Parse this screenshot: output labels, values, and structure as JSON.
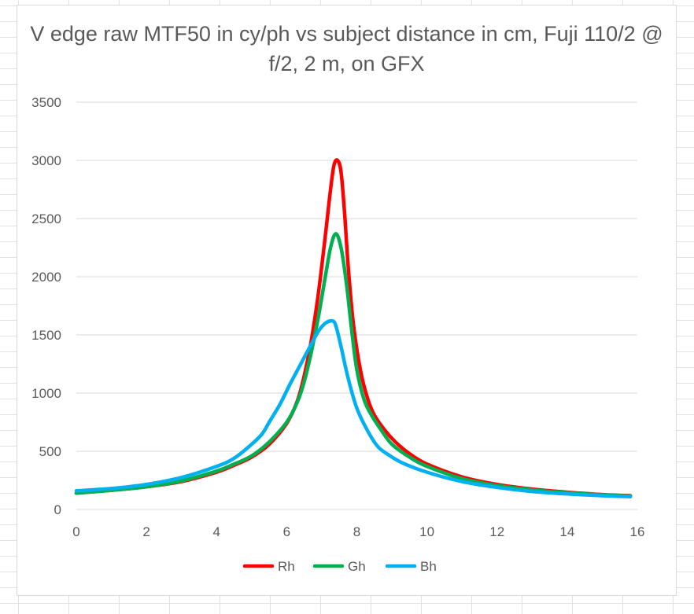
{
  "chart_data": {
    "type": "line",
    "title": "V edge raw MTF50 in cy/ph vs subject distance in cm, Fuji 110/2 @ f/2, 2 m, on GFX",
    "xlabel": "",
    "ylabel": "",
    "xlim": [
      0,
      16
    ],
    "ylim": [
      0,
      3500
    ],
    "x_ticks": [
      "0",
      "2",
      "4",
      "6",
      "8",
      "10",
      "12",
      "14",
      "16"
    ],
    "y_ticks": [
      "0",
      "500",
      "1000",
      "1500",
      "2000",
      "2500",
      "3000",
      "3500"
    ],
    "grid": "horizontal",
    "legend_position": "bottom",
    "series": [
      {
        "name": "Rh",
        "color": "#ff0000",
        "points": [
          [
            0,
            140
          ],
          [
            1,
            165
          ],
          [
            2,
            195
          ],
          [
            3,
            240
          ],
          [
            4,
            320
          ],
          [
            4.5,
            380
          ],
          [
            5,
            450
          ],
          [
            5.5,
            560
          ],
          [
            6,
            740
          ],
          [
            6.3,
            930
          ],
          [
            6.5,
            1150
          ],
          [
            6.7,
            1450
          ],
          [
            6.9,
            1850
          ],
          [
            7.1,
            2350
          ],
          [
            7.25,
            2750
          ],
          [
            7.35,
            2960
          ],
          [
            7.45,
            3000
          ],
          [
            7.55,
            2900
          ],
          [
            7.65,
            2550
          ],
          [
            7.75,
            2100
          ],
          [
            7.9,
            1600
          ],
          [
            8.1,
            1200
          ],
          [
            8.3,
            960
          ],
          [
            8.5,
            810
          ],
          [
            8.8,
            680
          ],
          [
            9.1,
            580
          ],
          [
            9.5,
            480
          ],
          [
            10,
            390
          ],
          [
            11,
            280
          ],
          [
            12,
            215
          ],
          [
            13,
            175
          ],
          [
            14,
            148
          ],
          [
            15,
            128
          ],
          [
            15.8,
            118
          ]
        ]
      },
      {
        "name": "Gh",
        "color": "#00b050",
        "points": [
          [
            0,
            140
          ],
          [
            1,
            165
          ],
          [
            2,
            195
          ],
          [
            3,
            245
          ],
          [
            4,
            330
          ],
          [
            4.5,
            390
          ],
          [
            5,
            460
          ],
          [
            5.5,
            580
          ],
          [
            6,
            750
          ],
          [
            6.3,
            920
          ],
          [
            6.5,
            1100
          ],
          [
            6.7,
            1350
          ],
          [
            6.9,
            1650
          ],
          [
            7.1,
            2000
          ],
          [
            7.25,
            2250
          ],
          [
            7.4,
            2370
          ],
          [
            7.55,
            2250
          ],
          [
            7.7,
            1950
          ],
          [
            7.85,
            1550
          ],
          [
            8.0,
            1200
          ],
          [
            8.2,
            950
          ],
          [
            8.4,
            820
          ],
          [
            8.7,
            680
          ],
          [
            9.0,
            560
          ],
          [
            9.5,
            450
          ],
          [
            10,
            370
          ],
          [
            11,
            265
          ],
          [
            12,
            205
          ],
          [
            13,
            168
          ],
          [
            14,
            143
          ],
          [
            15,
            125
          ],
          [
            15.8,
            115
          ]
        ]
      },
      {
        "name": "Bh",
        "color": "#00b0f0",
        "points": [
          [
            0,
            160
          ],
          [
            1,
            180
          ],
          [
            2,
            215
          ],
          [
            3,
            275
          ],
          [
            4,
            370
          ],
          [
            4.5,
            440
          ],
          [
            5,
            560
          ],
          [
            5.3,
            650
          ],
          [
            5.5,
            750
          ],
          [
            5.8,
            900
          ],
          [
            6.1,
            1080
          ],
          [
            6.4,
            1250
          ],
          [
            6.7,
            1420
          ],
          [
            6.9,
            1530
          ],
          [
            7.1,
            1600
          ],
          [
            7.3,
            1620
          ],
          [
            7.4,
            1580
          ],
          [
            7.55,
            1400
          ],
          [
            7.75,
            1130
          ],
          [
            8.0,
            870
          ],
          [
            8.3,
            680
          ],
          [
            8.6,
            540
          ],
          [
            8.9,
            470
          ],
          [
            9.3,
            400
          ],
          [
            10,
            320
          ],
          [
            11,
            240
          ],
          [
            12,
            190
          ],
          [
            13,
            155
          ],
          [
            14,
            133
          ],
          [
            15,
            118
          ],
          [
            15.8,
            110
          ]
        ]
      }
    ]
  }
}
